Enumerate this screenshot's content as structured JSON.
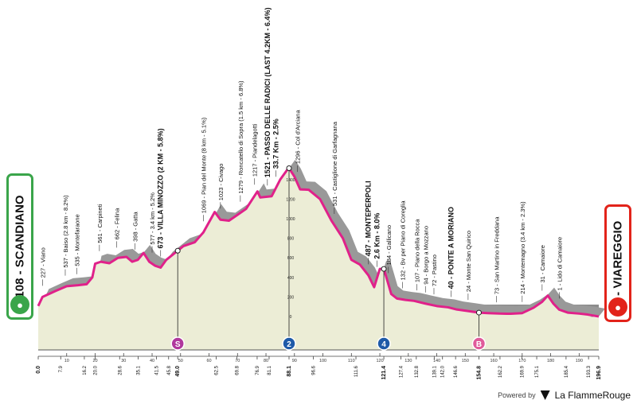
{
  "stage": {
    "start": "108 - SCANDIANO",
    "finish": "0 - VIAREGGIO",
    "total_km": 196.9
  },
  "colors": {
    "profile": "#999999",
    "outline": "#e0218a",
    "base": "#ecedd6",
    "start": "#3aa54a",
    "finish": "#e2231a"
  },
  "chart_data": {
    "type": "area",
    "profile": [
      [
        0,
        108
      ],
      [
        1.5,
        200
      ],
      [
        6,
        260
      ],
      [
        10,
        310
      ],
      [
        14,
        320
      ],
      [
        17,
        330
      ],
      [
        19,
        400
      ],
      [
        20,
        540
      ],
      [
        22,
        560
      ],
      [
        25,
        545
      ],
      [
        28,
        600
      ],
      [
        31,
        610
      ],
      [
        33,
        560
      ],
      [
        35,
        580
      ],
      [
        37,
        650
      ],
      [
        39,
        560
      ],
      [
        41,
        520
      ],
      [
        43,
        500
      ],
      [
        45,
        580
      ],
      [
        49,
        673
      ],
      [
        51,
        720
      ],
      [
        55,
        760
      ],
      [
        58,
        860
      ],
      [
        62,
        1069
      ],
      [
        64,
        990
      ],
      [
        67,
        980
      ],
      [
        70,
        1040
      ],
      [
        73,
        1100
      ],
      [
        77,
        1279
      ],
      [
        78,
        1217
      ],
      [
        82,
        1230
      ],
      [
        85,
        1400
      ],
      [
        88,
        1521
      ],
      [
        90,
        1430
      ],
      [
        92,
        1300
      ],
      [
        95,
        1296
      ],
      [
        99,
        1200
      ],
      [
        103,
        980
      ],
      [
        107,
        800
      ],
      [
        110,
        580
      ],
      [
        113,
        531
      ],
      [
        116,
        420
      ],
      [
        118,
        300
      ],
      [
        120,
        487
      ],
      [
        121.4,
        487
      ],
      [
        122.5,
        380
      ],
      [
        124,
        230
      ],
      [
        126,
        184
      ],
      [
        129,
        170
      ],
      [
        132,
        160
      ],
      [
        136,
        132
      ],
      [
        140,
        107
      ],
      [
        144,
        94
      ],
      [
        147,
        72
      ],
      [
        151,
        56
      ],
      [
        154.8,
        40
      ],
      [
        158,
        35
      ],
      [
        162,
        30
      ],
      [
        166,
        28
      ],
      [
        170,
        35
      ],
      [
        174,
        90
      ],
      [
        177,
        150
      ],
      [
        179,
        214
      ],
      [
        181,
        130
      ],
      [
        183,
        70
      ],
      [
        186,
        40
      ],
      [
        190,
        30
      ],
      [
        193,
        20
      ],
      [
        196.9,
        0
      ]
    ],
    "x_ticks": [
      "0.0",
      "7.9",
      "16.2",
      "20.0",
      "28.6",
      "35.1",
      "41.5",
      "45.8",
      "49.0",
      "62.5",
      "69.8",
      "76.9",
      "81.1",
      "88.1",
      "96.6",
      "111.6",
      "121.4",
      "127.4",
      "132.8",
      "139.1",
      "142.0",
      "146.6",
      "154.8",
      "162.2",
      "169.9",
      "175.1",
      "185.4",
      "193.3",
      "196.9"
    ],
    "bold_ticks": [
      "0.0",
      "49.0",
      "88.1",
      "121.4",
      "154.8",
      "196.9"
    ],
    "x_ticks_minor": [
      "10",
      "20",
      "30",
      "40",
      "50",
      "60",
      "70",
      "80",
      "90",
      "100",
      "110",
      "120",
      "130",
      "140",
      "150",
      "160",
      "170",
      "180",
      "190"
    ],
    "y_ticks": [
      "0",
      "200",
      "400",
      "600",
      "800",
      "1000",
      "1200",
      "1400"
    ],
    "places": [
      {
        "km": 1.5,
        "label": "227 - Viano",
        "bold": false
      },
      {
        "km": 9.5,
        "label": "537 - Baiso (2.8 km - 8.2%)",
        "bold": false
      },
      {
        "km": 13.5,
        "label": "535 - Montefaraone",
        "bold": false
      },
      {
        "km": 21.5,
        "label": "561 - Carpineti",
        "bold": false
      },
      {
        "km": 27.5,
        "label": "662 - Felina",
        "bold": false
      },
      {
        "km": 34,
        "label": "398 - Gatta",
        "bold": false
      },
      {
        "km": 40,
        "label": "577 - 3.4 km - 5.2%",
        "bold": false
      },
      {
        "km": 43,
        "label": "673 - VILLA MINOZZO (2 KM - 5.8%)",
        "bold": true
      },
      {
        "km": 58,
        "label": "1069 - Pian del Monte (8 km - 5.1%)",
        "bold": false
      },
      {
        "km": 64,
        "label": "1023 - Civago",
        "bold": false
      },
      {
        "km": 71,
        "label": "1279 - Roncatello di Sopra (1.5 km - 6.8%)",
        "bold": false
      },
      {
        "km": 76,
        "label": "1217 - Piandelagotti",
        "bold": false
      },
      {
        "km": 80.5,
        "label": "1521 - PASSO DELLE RADICI (LAST 4.2KM - 6.4%)",
        "bold": true
      },
      {
        "km": 83.5,
        "label": "33.7 Km - 2.5%",
        "bold": true
      },
      {
        "km": 91,
        "label": "1296 - Col d'Arciana",
        "bold": false
      },
      {
        "km": 104,
        "label": "531 - Castiglione di Garfagnana",
        "bold": false
      },
      {
        "km": 116,
        "label": "487 - MONTEPERPOLI",
        "bold": true
      },
      {
        "km": 119,
        "label": "2.6 Km - 8.0%",
        "bold": true
      },
      {
        "km": 123,
        "label": "184 - Gallicano",
        "bold": false
      },
      {
        "km": 128,
        "label": "132 - Bv per Piano di Coreglia",
        "bold": false
      },
      {
        "km": 133,
        "label": "107 - Piano della Rocca",
        "bold": false
      },
      {
        "km": 136,
        "label": "94 - Borgo a Mozzano",
        "bold": false
      },
      {
        "km": 139,
        "label": "72 - Pastino",
        "bold": false
      },
      {
        "km": 145,
        "label": "40 - PONTE A MORIANO",
        "bold": true
      },
      {
        "km": 151,
        "label": "24 - Monte San Quirico",
        "bold": false
      },
      {
        "km": 161,
        "label": "73 - San Martino in Freddana",
        "bold": false
      },
      {
        "km": 170,
        "label": "214 - Montemagno (3.4 km - 2.3%)",
        "bold": false
      },
      {
        "km": 177,
        "label": "31 - Camaiore",
        "bold": false
      },
      {
        "km": 183,
        "label": "1 - Lido di Camaiore",
        "bold": false
      }
    ],
    "markers": [
      {
        "km": 49.0,
        "label": "S",
        "kind": "sprint"
      },
      {
        "km": 88.1,
        "label": "2",
        "kind": "kom"
      },
      {
        "km": 121.4,
        "label": "4",
        "kind": "kom"
      },
      {
        "km": 154.8,
        "label": "B",
        "kind": "bonus"
      }
    ]
  },
  "footer": {
    "powered": "Powered by",
    "brand": "La FlammeRouge"
  }
}
